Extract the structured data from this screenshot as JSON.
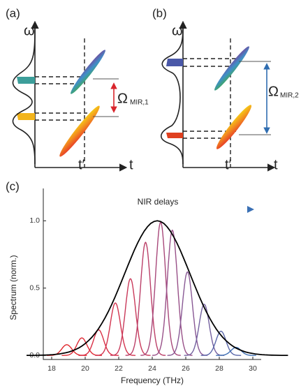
{
  "panel_a": {
    "label": "(a)",
    "y_axis": "ω",
    "x_axis": "t",
    "marker": "t′",
    "omega": "Ω",
    "omega_sub": "MIR,1"
  },
  "panel_b": {
    "label": "(b)",
    "y_axis": "ω",
    "x_axis": "t",
    "marker": "t′",
    "omega": "Ω",
    "omega_sub": "MIR,2"
  },
  "chart_data": {
    "type": "line",
    "label": "(c)",
    "annotation": "NIR delays",
    "x_label": "Frequency (THz)",
    "y_label": "Spectrum (norm.)",
    "xlim": [
      17.5,
      30.5
    ],
    "ylim": [
      -0.03,
      1.24
    ],
    "xticks": [
      18,
      20,
      22,
      24,
      26,
      28,
      30
    ],
    "yticks": [
      {
        "value": 0,
        "label": "0.0"
      },
      0.5,
      {
        "value": 1,
        "label": "1.0"
      }
    ],
    "envelope": {
      "color": "#000000",
      "center": 24.3,
      "height": 1.0,
      "width": 1.95
    },
    "series": [
      {
        "color": "#e0262b",
        "center": 18.9,
        "height": 0.08,
        "width": 0.3
      },
      {
        "color": "#de2a35",
        "center": 19.8,
        "height": 0.13,
        "width": 0.3
      },
      {
        "color": "#d92f45",
        "center": 20.8,
        "height": 0.19,
        "width": 0.3
      },
      {
        "color": "#d3344f",
        "center": 21.8,
        "height": 0.39,
        "width": 0.3
      },
      {
        "color": "#c9395a",
        "center": 22.7,
        "height": 0.57,
        "width": 0.3
      },
      {
        "color": "#bb3f68",
        "center": 23.6,
        "height": 0.84,
        "width": 0.3
      },
      {
        "color": "#a8487a",
        "center": 24.5,
        "height": 0.99,
        "width": 0.3
      },
      {
        "color": "#985088",
        "center": 25.2,
        "height": 0.93,
        "width": 0.3
      },
      {
        "color": "#885894",
        "center": 26.1,
        "height": 0.62,
        "width": 0.3
      },
      {
        "color": "#73609f",
        "center": 27.1,
        "height": 0.38,
        "width": 0.3
      },
      {
        "color": "#5b68aa",
        "center": 28.1,
        "height": 0.18,
        "width": 0.3
      },
      {
        "color": "#3f70b4",
        "center": 29.0,
        "height": 0.06,
        "width": 0.3
      }
    ]
  }
}
